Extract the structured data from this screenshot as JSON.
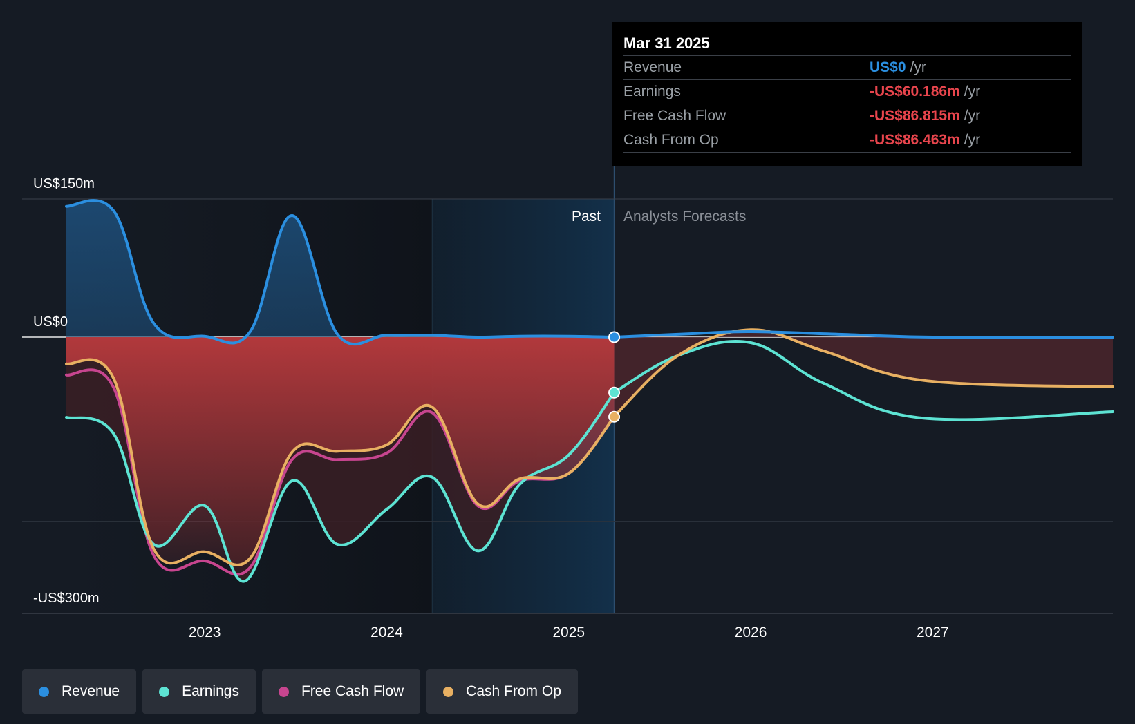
{
  "chart_data": {
    "type": "area",
    "y_labels": [
      "US$150m",
      "US$0",
      "-US$300m"
    ],
    "ylim": [
      -300,
      150
    ],
    "xlim": [
      2022.24,
      2027.99
    ],
    "x_ticks": [
      "2023",
      "2024",
      "2025",
      "2026",
      "2027"
    ],
    "x_tick_values": [
      2023,
      2024,
      2025,
      2026,
      2027
    ],
    "past_label": "Past",
    "forecast_label": "Analysts Forecasts",
    "highlight_start": 2024.25,
    "divider_x": 2025.25,
    "series": [
      {
        "name": "Revenue",
        "color": "#2b8fe0",
        "points": [
          [
            2022.24,
            142
          ],
          [
            2022.5,
            137
          ],
          [
            2022.72,
            15
          ],
          [
            2023.0,
            1
          ],
          [
            2023.25,
            6
          ],
          [
            2023.48,
            132
          ],
          [
            2023.73,
            3
          ],
          [
            2024.0,
            2
          ],
          [
            2024.25,
            2
          ],
          [
            2024.5,
            0
          ],
          [
            2024.73,
            1
          ],
          [
            2025.0,
            1
          ],
          [
            2025.25,
            0
          ]
        ],
        "forecast": [
          [
            2025.25,
            0
          ],
          [
            2025.7,
            4
          ],
          [
            2026.0,
            6
          ],
          [
            2026.5,
            3
          ],
          [
            2027.0,
            0
          ],
          [
            2027.99,
            0
          ]
        ]
      },
      {
        "name": "Earnings",
        "color": "#5de3d3",
        "points": [
          [
            2022.24,
            -87
          ],
          [
            2022.5,
            -105
          ],
          [
            2022.72,
            -225
          ],
          [
            2023.0,
            -183
          ],
          [
            2023.22,
            -265
          ],
          [
            2023.48,
            -156
          ],
          [
            2023.73,
            -225
          ],
          [
            2024.0,
            -187
          ],
          [
            2024.25,
            -152
          ],
          [
            2024.5,
            -232
          ],
          [
            2024.73,
            -160
          ],
          [
            2025.0,
            -128
          ],
          [
            2025.25,
            -60.186
          ]
        ],
        "forecast": [
          [
            2025.25,
            -60
          ],
          [
            2025.6,
            -20
          ],
          [
            2026.0,
            -6
          ],
          [
            2026.4,
            -50
          ],
          [
            2026.95,
            -88
          ],
          [
            2027.99,
            -81
          ]
        ]
      },
      {
        "name": "Free Cash Flow",
        "color": "#c7458f",
        "points": [
          [
            2022.24,
            -41
          ],
          [
            2022.5,
            -55
          ],
          [
            2022.72,
            -237
          ],
          [
            2023.0,
            -243
          ],
          [
            2023.25,
            -250
          ],
          [
            2023.48,
            -133
          ],
          [
            2023.73,
            -133
          ],
          [
            2024.0,
            -126
          ],
          [
            2024.25,
            -82
          ],
          [
            2024.5,
            -183
          ],
          [
            2024.73,
            -156
          ],
          [
            2025.0,
            -148
          ],
          [
            2025.25,
            -86.815
          ]
        ],
        "forecast": []
      },
      {
        "name": "Cash From Op",
        "color": "#e8b062",
        "points": [
          [
            2022.24,
            -29
          ],
          [
            2022.5,
            -45
          ],
          [
            2022.72,
            -230
          ],
          [
            2023.0,
            -233
          ],
          [
            2023.25,
            -240
          ],
          [
            2023.48,
            -125
          ],
          [
            2023.73,
            -124
          ],
          [
            2024.0,
            -117
          ],
          [
            2024.25,
            -76
          ],
          [
            2024.5,
            -181
          ],
          [
            2024.73,
            -154
          ],
          [
            2025.0,
            -148
          ],
          [
            2025.25,
            -86.463
          ]
        ],
        "forecast": [
          [
            2025.25,
            -86
          ],
          [
            2025.6,
            -20
          ],
          [
            2026.0,
            8
          ],
          [
            2026.4,
            -15
          ],
          [
            2026.95,
            -47
          ],
          [
            2027.99,
            -54
          ]
        ]
      }
    ]
  },
  "tooltip": {
    "date": "Mar 31 2025",
    "rows": [
      {
        "label": "Revenue",
        "value": "US$0",
        "unit": "/yr",
        "color": "#2b8fe0"
      },
      {
        "label": "Earnings",
        "value": "-US$60.186m",
        "unit": "/yr",
        "color": "#e8454d"
      },
      {
        "label": "Free Cash Flow",
        "value": "-US$86.815m",
        "unit": "/yr",
        "color": "#e8454d"
      },
      {
        "label": "Cash From Op",
        "value": "-US$86.463m",
        "unit": "/yr",
        "color": "#e8454d"
      }
    ]
  },
  "legend": [
    {
      "label": "Revenue",
      "color": "#2b8fe0"
    },
    {
      "label": "Earnings",
      "color": "#5de3d3"
    },
    {
      "label": "Free Cash Flow",
      "color": "#c7458f"
    },
    {
      "label": "Cash From Op",
      "color": "#e8b062"
    }
  ]
}
